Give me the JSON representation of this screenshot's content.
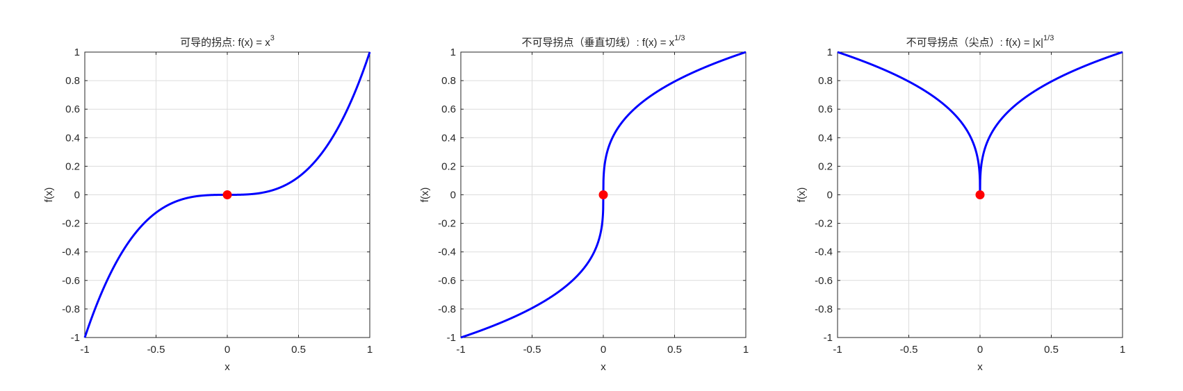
{
  "chart_data": [
    {
      "type": "line",
      "title": "可导的拐点: f(x) = x",
      "title_superscript": "3",
      "function": "x^3",
      "xlabel": "x",
      "ylabel": "f(x)",
      "xlim": [
        -1,
        1
      ],
      "ylim": [
        -1,
        1
      ],
      "xticks": [
        "-1",
        "-0.5",
        "0",
        "0.5",
        "1"
      ],
      "yticks": [
        "-1",
        "-0.8",
        "-0.6",
        "-0.4",
        "-0.2",
        "0",
        "0.2",
        "0.4",
        "0.6",
        "0.8",
        "1"
      ],
      "grid": true,
      "line_color": "#0000ff",
      "marker": {
        "x": 0,
        "y": 0,
        "color": "#ff0000"
      }
    },
    {
      "type": "line",
      "title": "不可导拐点（垂直切线）: f(x) = x",
      "title_superscript": "1/3",
      "function": "sign(x)*|x|^(1/3)",
      "xlabel": "x",
      "ylabel": "f(x)",
      "xlim": [
        -1,
        1
      ],
      "ylim": [
        -1,
        1
      ],
      "xticks": [
        "-1",
        "-0.5",
        "0",
        "0.5",
        "1"
      ],
      "yticks": [
        "-1",
        "-0.8",
        "-0.6",
        "-0.4",
        "-0.2",
        "0",
        "0.2",
        "0.4",
        "0.6",
        "0.8",
        "1"
      ],
      "grid": true,
      "line_color": "#0000ff",
      "marker": {
        "x": 0,
        "y": 0,
        "color": "#ff0000"
      }
    },
    {
      "type": "line",
      "title": "不可导拐点（尖点）: f(x) = |x|",
      "title_superscript": "1/3",
      "function": "|x|^(1/3)",
      "xlabel": "x",
      "ylabel": "f(x)",
      "xlim": [
        -1,
        1
      ],
      "ylim": [
        -1,
        1
      ],
      "xticks": [
        "-1",
        "-0.5",
        "0",
        "0.5",
        "1"
      ],
      "yticks": [
        "-1",
        "-0.8",
        "-0.6",
        "-0.4",
        "-0.2",
        "0",
        "0.2",
        "0.4",
        "0.6",
        "0.8",
        "1"
      ],
      "grid": true,
      "line_color": "#0000ff",
      "marker": {
        "x": 0,
        "y": 0,
        "color": "#ff0000"
      }
    }
  ]
}
